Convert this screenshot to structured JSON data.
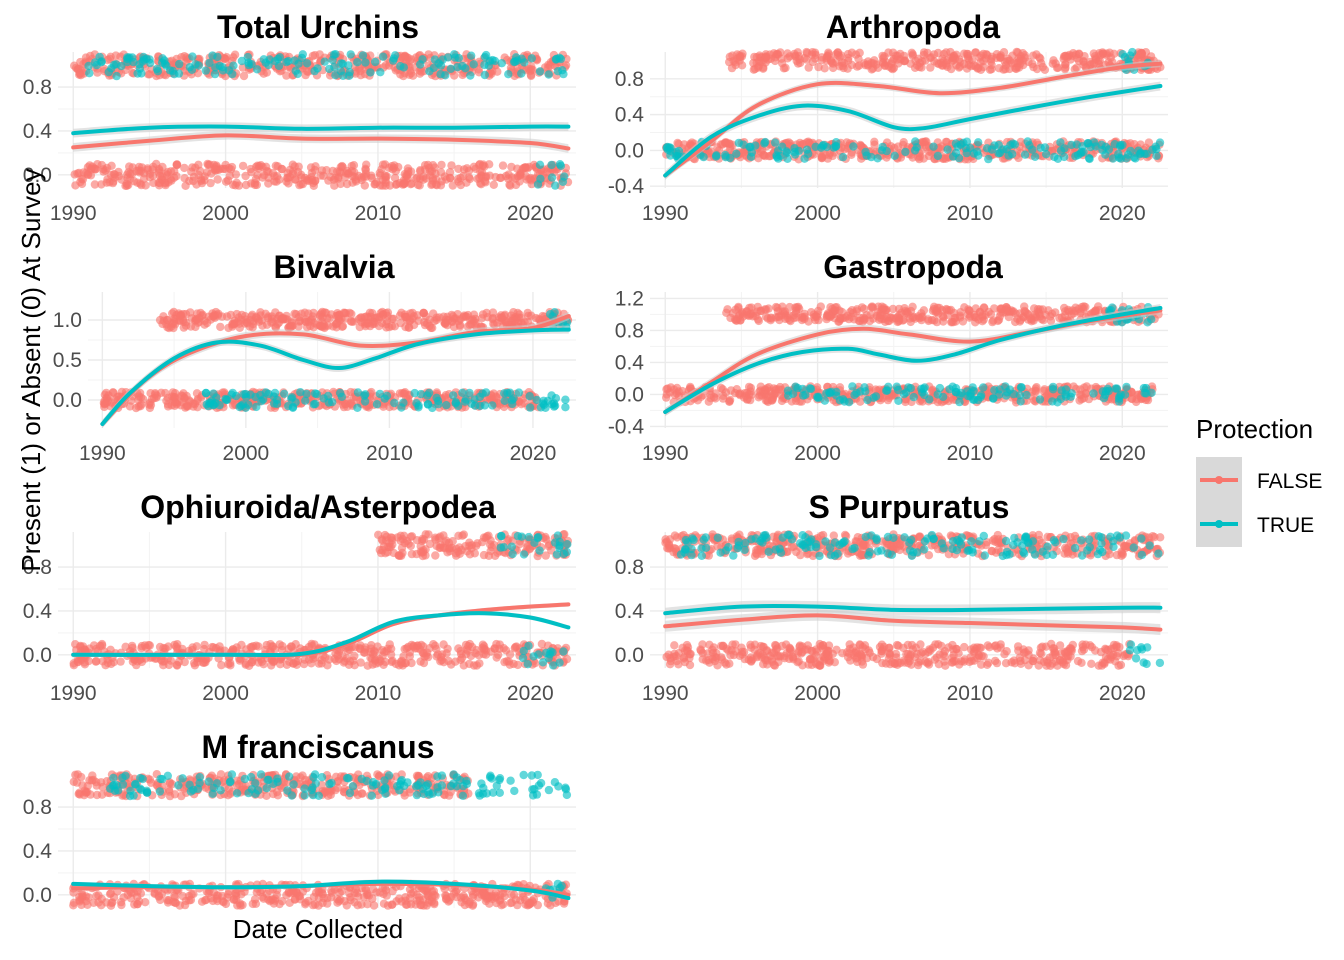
{
  "figure": {
    "xlabel": "Date Collected",
    "ylabel": "Present (1) or Absent (0) At Survey"
  },
  "legend": {
    "title": "Protection",
    "position": "right",
    "entries": [
      {
        "label": "FALSE",
        "color": "#F8766D"
      },
      {
        "label": "TRUE",
        "color": "#00BFC4"
      }
    ]
  },
  "colors": {
    "false": "#F8766D",
    "true": "#00BFC4",
    "ribbon": "#cccccc",
    "grid": "#ebebeb"
  },
  "chart_data": [
    {
      "type": "scatter",
      "title": "Total Urchins",
      "xlim": [
        1989,
        2023
      ],
      "ylim": [
        -0.12,
        1.12
      ],
      "x_ticks": [
        1990,
        2000,
        2010,
        2020
      ],
      "y_ticks": [
        0.0,
        0.4,
        0.8
      ],
      "y_tick_labels": [
        "0.0",
        "0.4",
        "0.8"
      ],
      "show_x_tick_labels": true,
      "points": [
        {
          "series": "FALSE",
          "y": 1,
          "x_start": 1990,
          "x_end": 2022.5
        },
        {
          "series": "FALSE",
          "y": 0,
          "x_start": 1990,
          "x_end": 2022.5
        },
        {
          "series": "TRUE",
          "y": 1,
          "x_start": 1991,
          "x_end": 2022.5
        },
        {
          "series": "TRUE",
          "y": 0,
          "x_start": 2020.5,
          "x_end": 2022.5
        }
      ],
      "series": [
        {
          "name": "FALSE",
          "x": [
            1990,
            1995,
            2000,
            2005,
            2010,
            2015,
            2020,
            2022.5
          ],
          "y": [
            0.25,
            0.31,
            0.36,
            0.33,
            0.33,
            0.32,
            0.29,
            0.24
          ],
          "band": 0.04
        },
        {
          "name": "TRUE",
          "x": [
            1990,
            1995,
            2000,
            2005,
            2010,
            2015,
            2020,
            2022.5
          ],
          "y": [
            0.38,
            0.43,
            0.44,
            0.42,
            0.43,
            0.43,
            0.44,
            0.44
          ],
          "band": 0.04
        }
      ]
    },
    {
      "type": "scatter",
      "title": "Arthropoda",
      "xlim": [
        1989,
        2023
      ],
      "ylim": [
        -0.42,
        1.1
      ],
      "x_ticks": [
        1990,
        2000,
        2010,
        2020
      ],
      "y_ticks": [
        -0.4,
        0.0,
        0.4,
        0.8
      ],
      "y_tick_labels": [
        "-0.4",
        "0.0",
        "0.4",
        "0.8"
      ],
      "show_x_tick_labels": true,
      "points": [
        {
          "series": "FALSE",
          "y": 1,
          "x_start": 1994,
          "x_end": 2022.5
        },
        {
          "series": "FALSE",
          "y": 0,
          "x_start": 1990,
          "x_end": 2022.5
        },
        {
          "series": "TRUE",
          "y": 1,
          "x_start": 2020,
          "x_end": 2022.5
        },
        {
          "series": "TRUE",
          "y": 0,
          "x_start": 1990,
          "x_end": 2022.5
        }
      ],
      "series": [
        {
          "name": "FALSE",
          "x": [
            1990,
            1993,
            1996,
            2000,
            2004,
            2008,
            2012,
            2016,
            2020,
            2022.5
          ],
          "y": [
            -0.28,
            0.1,
            0.5,
            0.74,
            0.72,
            0.64,
            0.7,
            0.82,
            0.93,
            0.97
          ],
          "band": 0.04
        },
        {
          "name": "TRUE",
          "x": [
            1990,
            1993,
            1996,
            1999,
            2002,
            2005,
            2007,
            2010,
            2014,
            2018,
            2022.5
          ],
          "y": [
            -0.28,
            0.15,
            0.38,
            0.5,
            0.44,
            0.26,
            0.25,
            0.35,
            0.48,
            0.6,
            0.72
          ],
          "band": 0.05
        }
      ]
    },
    {
      "type": "scatter",
      "title": "Bivalvia",
      "xlim": [
        1989,
        2023
      ],
      "ylim": [
        -0.35,
        1.35
      ],
      "x_ticks": [
        1990,
        2000,
        2010,
        2020
      ],
      "y_ticks": [
        0.0,
        0.5,
        1.0
      ],
      "y_tick_labels": [
        "0.0",
        "0.5",
        "1.0"
      ],
      "show_x_tick_labels": true,
      "points": [
        {
          "series": "FALSE",
          "y": 1,
          "x_start": 1994,
          "x_end": 2022.5
        },
        {
          "series": "FALSE",
          "y": 0,
          "x_start": 1990,
          "x_end": 2020.5
        },
        {
          "series": "TRUE",
          "y": 1,
          "x_start": 2021,
          "x_end": 2022.5
        },
        {
          "series": "TRUE",
          "y": 0,
          "x_start": 1997,
          "x_end": 2022.5
        }
      ],
      "series": [
        {
          "name": "FALSE",
          "x": [
            1990,
            1993,
            1996,
            2000,
            2004,
            2008,
            2012,
            2016,
            2020,
            2022.5
          ],
          "y": [
            -0.3,
            0.25,
            0.58,
            0.8,
            0.82,
            0.68,
            0.72,
            0.85,
            0.9,
            1.05
          ],
          "band": 0.05
        },
        {
          "name": "TRUE",
          "x": [
            1990,
            1992,
            1995,
            1998,
            2001,
            2004,
            2006.5,
            2009,
            2012,
            2016,
            2020,
            2022.5
          ],
          "y": [
            -0.3,
            0.1,
            0.52,
            0.72,
            0.68,
            0.5,
            0.4,
            0.52,
            0.7,
            0.82,
            0.87,
            0.88
          ],
          "band": 0.05
        }
      ]
    },
    {
      "type": "scatter",
      "title": "Gastropoda",
      "xlim": [
        1989,
        2023
      ],
      "ylim": [
        -0.42,
        1.28
      ],
      "x_ticks": [
        1990,
        2000,
        2010,
        2020
      ],
      "y_ticks": [
        -0.4,
        0.0,
        0.4,
        0.8,
        1.2
      ],
      "y_tick_labels": [
        "-0.4",
        "0.0",
        "0.4",
        "0.8",
        "1.2"
      ],
      "show_x_tick_labels": true,
      "points": [
        {
          "series": "FALSE",
          "y": 1,
          "x_start": 1994,
          "x_end": 2022.5
        },
        {
          "series": "FALSE",
          "y": 0,
          "x_start": 1990,
          "x_end": 2022
        },
        {
          "series": "TRUE",
          "y": 1,
          "x_start": 2019,
          "x_end": 2022.5
        },
        {
          "series": "TRUE",
          "y": 0,
          "x_start": 1998,
          "x_end": 2022
        }
      ],
      "series": [
        {
          "name": "FALSE",
          "x": [
            1990,
            1993,
            1996,
            2000,
            2003,
            2006,
            2010,
            2014,
            2018,
            2022.5
          ],
          "y": [
            -0.22,
            0.15,
            0.5,
            0.75,
            0.82,
            0.75,
            0.66,
            0.78,
            0.92,
            1.05
          ],
          "band": 0.05
        },
        {
          "name": "TRUE",
          "x": [
            1990,
            1993,
            1996,
            1999,
            2002,
            2004,
            2006.5,
            2009,
            2012,
            2016,
            2020,
            2022.5
          ],
          "y": [
            -0.22,
            0.12,
            0.38,
            0.53,
            0.57,
            0.5,
            0.42,
            0.5,
            0.68,
            0.86,
            1.0,
            1.08
          ],
          "band": 0.05
        }
      ]
    },
    {
      "type": "scatter",
      "title": "Ophiuroida/Asterpodea",
      "xlim": [
        1989,
        2023
      ],
      "ylim": [
        -0.12,
        1.12
      ],
      "x_ticks": [
        1990,
        2000,
        2010,
        2020
      ],
      "y_ticks": [
        0.0,
        0.4,
        0.8
      ],
      "y_tick_labels": [
        "0.0",
        "0.4",
        "0.8"
      ],
      "show_x_tick_labels": true,
      "points": [
        {
          "series": "FALSE",
          "y": 1,
          "x_start": 2010,
          "x_end": 2022.5
        },
        {
          "series": "FALSE",
          "y": 0,
          "x_start": 1990,
          "x_end": 2022.5
        },
        {
          "series": "TRUE",
          "y": 1,
          "x_start": 2018,
          "x_end": 2022.5
        },
        {
          "series": "TRUE",
          "y": 0,
          "x_start": 2019.5,
          "x_end": 2022.5
        }
      ],
      "series": [
        {
          "name": "FALSE",
          "x": [
            1990,
            2000,
            2005,
            2008,
            2011,
            2014,
            2018,
            2022.5
          ],
          "y": [
            0.0,
            0.0,
            0.0,
            0.1,
            0.28,
            0.36,
            0.42,
            0.46
          ],
          "band": 0.02
        },
        {
          "name": "TRUE",
          "x": [
            1990,
            2000,
            2005,
            2008,
            2011,
            2014,
            2017,
            2020,
            2022.5
          ],
          "y": [
            0.0,
            0.0,
            0.01,
            0.12,
            0.3,
            0.36,
            0.38,
            0.34,
            0.25
          ],
          "band": 0.02
        }
      ]
    },
    {
      "type": "scatter",
      "title": "S Purpuratus",
      "xlim": [
        1989,
        2023
      ],
      "ylim": [
        -0.12,
        1.12
      ],
      "x_ticks": [
        1990,
        2000,
        2010,
        2020
      ],
      "y_ticks": [
        0.0,
        0.4,
        0.8
      ],
      "y_tick_labels": [
        "0.0",
        "0.4",
        "0.8"
      ],
      "show_x_tick_labels": true,
      "points": [
        {
          "series": "FALSE",
          "y": 1,
          "x_start": 1990,
          "x_end": 2022.5
        },
        {
          "series": "FALSE",
          "y": 0,
          "x_start": 1990,
          "x_end": 2020.5
        },
        {
          "series": "TRUE",
          "y": 1,
          "x_start": 1991,
          "x_end": 2022.5
        },
        {
          "series": "TRUE",
          "y": 0,
          "x_start": 2020.5,
          "x_end": 2022.5
        }
      ],
      "series": [
        {
          "name": "FALSE",
          "x": [
            1990,
            1995,
            2000,
            2005,
            2010,
            2015,
            2020,
            2022.5
          ],
          "y": [
            0.26,
            0.32,
            0.36,
            0.31,
            0.29,
            0.27,
            0.25,
            0.23
          ],
          "band": 0.05
        },
        {
          "name": "TRUE",
          "x": [
            1990,
            1995,
            2000,
            2005,
            2010,
            2015,
            2020,
            2022.5
          ],
          "y": [
            0.38,
            0.44,
            0.44,
            0.41,
            0.41,
            0.42,
            0.43,
            0.43
          ],
          "band": 0.05
        }
      ]
    },
    {
      "type": "scatter",
      "title": "M franciscanus",
      "xlim": [
        1989,
        2023
      ],
      "ylim": [
        -0.12,
        1.12
      ],
      "x_ticks": [
        1990,
        2000,
        2010,
        2020
      ],
      "y_ticks": [
        0.0,
        0.4,
        0.8
      ],
      "y_tick_labels": [
        "0.0",
        "0.4",
        "0.8"
      ],
      "show_x_tick_labels": false,
      "points": [
        {
          "series": "FALSE",
          "y": 1,
          "x_start": 1990,
          "x_end": 2016
        },
        {
          "series": "FALSE",
          "y": 0,
          "x_start": 1990,
          "x_end": 2022.5
        },
        {
          "series": "TRUE",
          "y": 1,
          "x_start": 1992,
          "x_end": 2022.5
        },
        {
          "series": "TRUE",
          "y": 0,
          "x_start": 2021,
          "x_end": 2022.5
        }
      ],
      "series": [
        {
          "name": "FALSE",
          "x": [
            1990,
            1995,
            2000,
            2005,
            2010,
            2015,
            2020,
            2022.5
          ],
          "y": [
            0.06,
            0.07,
            0.07,
            0.08,
            0.1,
            0.09,
            0.05,
            0.0
          ],
          "band": 0.02
        },
        {
          "name": "TRUE",
          "x": [
            1990,
            1995,
            2000,
            2005,
            2010,
            2015,
            2020,
            2022.5
          ],
          "y": [
            0.1,
            0.08,
            0.07,
            0.08,
            0.12,
            0.1,
            0.04,
            -0.03
          ],
          "band": 0.02
        }
      ]
    }
  ]
}
